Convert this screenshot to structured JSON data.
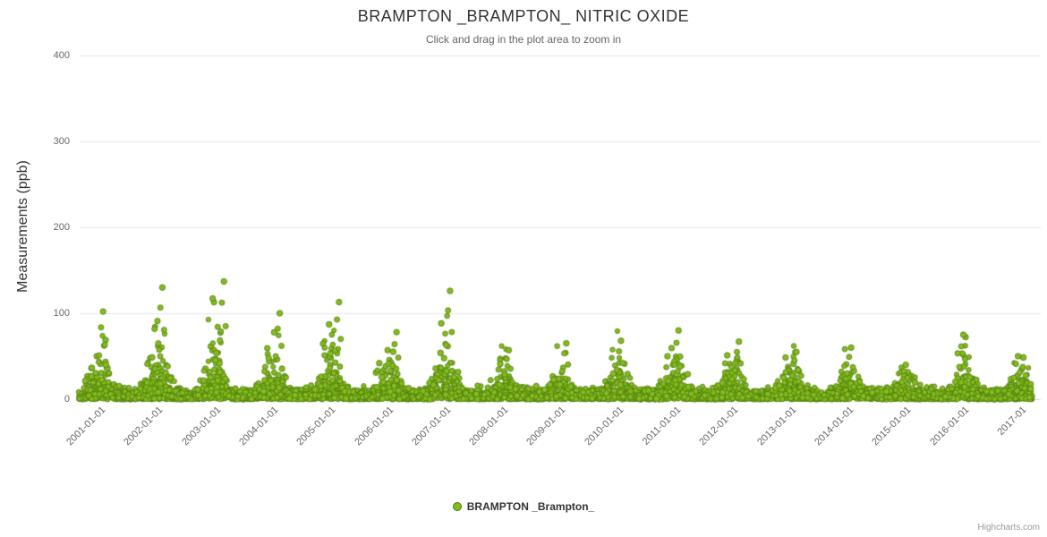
{
  "chart": {
    "title": "BRAMPTON _BRAMPTON_ NITRIC OXIDE",
    "subtitle": "Click and drag in the plot area to zoom in",
    "y_axis_title": "Measurements (ppb)",
    "legend_label": "BRAMPTON _Brampton_",
    "credits": "Highcharts.com"
  },
  "colors": {
    "series_fill": "#84bb1e",
    "series_stroke": "#4e7a0e",
    "grid_line": "#e6e6e6",
    "axis_line": "#ccd6eb",
    "tick_text": "#666666",
    "title_text": "#333333"
  },
  "chart_data": {
    "type": "scatter",
    "title": "BRAMPTON _BRAMPTON_ NITRIC OXIDE",
    "subtitle": "Click and drag in the plot area to zoom in",
    "xlabel": "",
    "ylabel": "Measurements (ppb)",
    "ylim": [
      0,
      400
    ],
    "yticks": [
      0,
      100,
      200,
      300,
      400
    ],
    "xtick_labels": [
      "2001-01-01",
      "2002-01-01",
      "2003-01-01",
      "2004-01-01",
      "2005-01-01",
      "2006-01-01",
      "2007-01-01",
      "2008-01-01",
      "2009-01-01",
      "2010-01-01",
      "2011-01-01",
      "2012-01-01",
      "2013-01-01",
      "2014-01-01",
      "2015-01-01",
      "2016-01-01",
      "2017-01"
    ],
    "x_range_years": [
      2000.55,
      2017.2
    ],
    "grid": "horizontal",
    "legend_position": "bottom-center",
    "legend": [
      "BRAMPTON _Brampton_"
    ],
    "series": [
      {
        "name": "BRAMPTON _Brampton_",
        "marker": "circle",
        "description": "Dense daily scatter of nitric oxide readings; year-round baseline near 0-25 ppb with recurring winter spikes each January",
        "baseline_ppb_range": [
          0,
          25
        ],
        "approx_point_count": 6000,
        "annual_winter_peaks": [
          {
            "winter_center_year": 2001.05,
            "max_ppb": 102
          },
          {
            "winter_center_year": 2002.08,
            "max_ppb": 130
          },
          {
            "winter_center_year": 2003.15,
            "max_ppb": 137
          },
          {
            "winter_center_year": 2004.12,
            "max_ppb": 100
          },
          {
            "winter_center_year": 2005.15,
            "max_ppb": 113
          },
          {
            "winter_center_year": 2006.15,
            "max_ppb": 78
          },
          {
            "winter_center_year": 2007.08,
            "max_ppb": 126
          },
          {
            "winter_center_year": 2008.1,
            "max_ppb": 57
          },
          {
            "winter_center_year": 2009.1,
            "max_ppb": 65
          },
          {
            "winter_center_year": 2010.05,
            "max_ppb": 68
          },
          {
            "winter_center_year": 2011.05,
            "max_ppb": 80
          },
          {
            "winter_center_year": 2012.1,
            "max_ppb": 67
          },
          {
            "winter_center_year": 2013.1,
            "max_ppb": 55
          },
          {
            "winter_center_year": 2014.05,
            "max_ppb": 60
          },
          {
            "winter_center_year": 2015.0,
            "max_ppb": 40
          },
          {
            "winter_center_year": 2016.0,
            "max_ppb": 75
          },
          {
            "winter_center_year": 2016.95,
            "max_ppb": 50
          }
        ]
      }
    ]
  }
}
